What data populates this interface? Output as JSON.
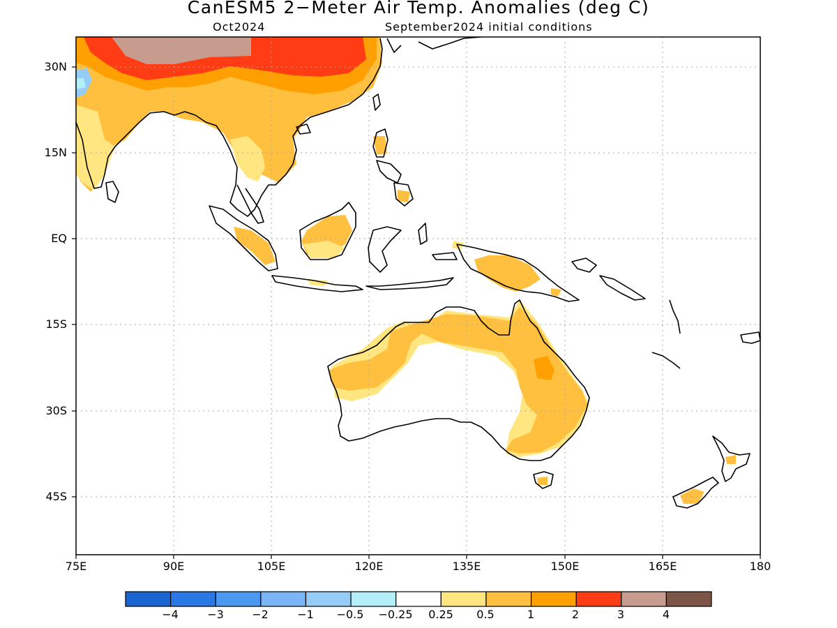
{
  "title": "CanESM5 2−Meter Air Temp. Anomalies (deg C)",
  "subtitle_left": "Oct2024",
  "subtitle_right": "September2024 initial conditions",
  "y_axis_labels": [
    "30N",
    "15N",
    "EQ",
    "15S",
    "30S",
    "45S"
  ],
  "x_axis_labels": [
    "75E",
    "90E",
    "105E",
    "120E",
    "135E",
    "150E",
    "165E",
    "180"
  ],
  "colorbar": {
    "colors": [
      "#1a64d2",
      "#2a78e6",
      "#4a98f0",
      "#7ab6f5",
      "#96cdf8",
      "#b4eef8",
      "#ffffff",
      "#ffe680",
      "#ffc040",
      "#ffa000",
      "#ff3c14",
      "#c89b8f",
      "#7d5546"
    ],
    "labels": [
      "−4",
      "−3",
      "−2",
      "−1",
      "−0.5",
      "−0.25",
      "0.25",
      "0.5",
      "1",
      "2",
      "3",
      "4"
    ]
  },
  "colors": {
    "anomaly_0_5": "#ffe680",
    "anomaly_1": "#ffc040",
    "anomaly_2": "#ffa000",
    "anomaly_3": "#ff3c14",
    "anomaly_4": "#c89b8f",
    "cold_small": "#96cdf8",
    "cold_smaller": "#b4eef8"
  }
}
